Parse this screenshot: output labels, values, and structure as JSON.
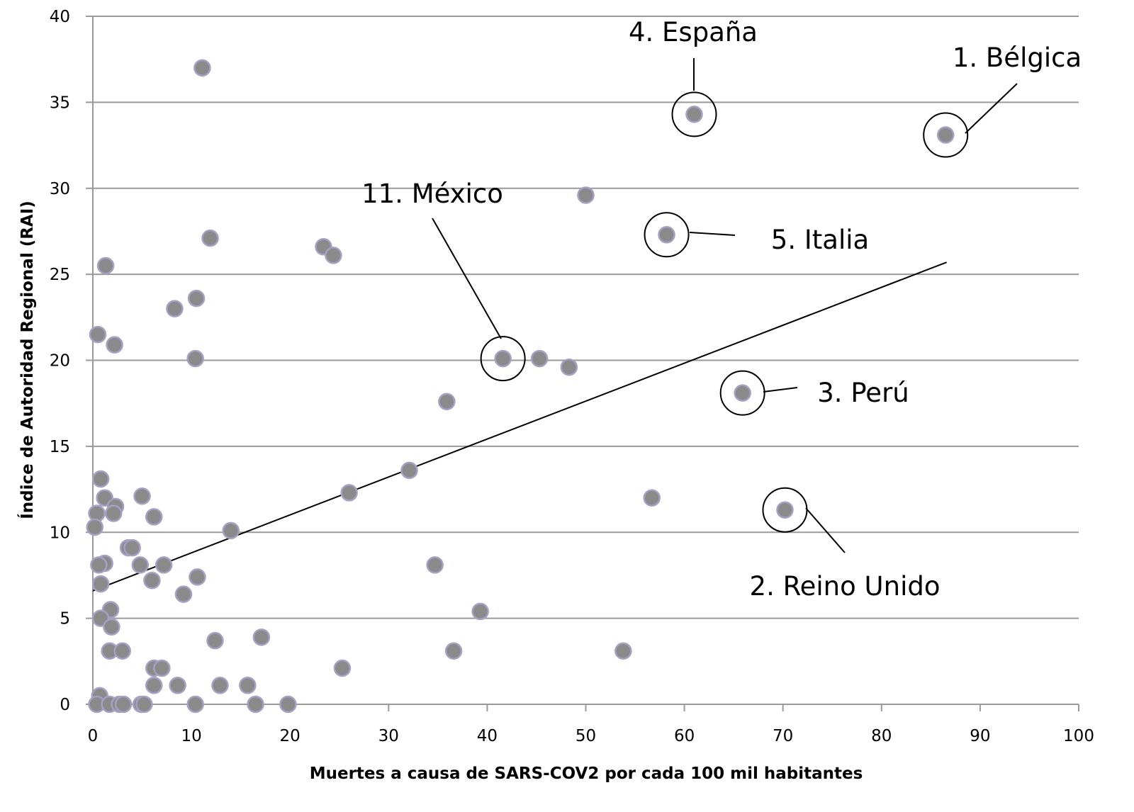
{
  "chart_data": {
    "type": "scatter",
    "title": "",
    "xlabel": "Muertes a causa de SARS-COV2 por cada 100 mil habitantes",
    "ylabel": "Índice de Autoridad Regional (RAI)",
    "xlim": [
      0,
      100
    ],
    "ylim": [
      0,
      40
    ],
    "xticks": [
      0,
      10,
      20,
      30,
      40,
      50,
      60,
      70,
      80,
      90,
      100
    ],
    "yticks": [
      0,
      5,
      10,
      15,
      20,
      25,
      30,
      35,
      40
    ],
    "grid": "horizontal",
    "colors": {
      "point_fill": "#8a8a8a",
      "point_stroke": "#a79fc4",
      "grid": "#9a9a9a",
      "trend": "#000000"
    },
    "points": [
      [
        11.1,
        37.0
      ],
      [
        61.0,
        34.3
      ],
      [
        86.5,
        33.1
      ],
      [
        50.0,
        29.6
      ],
      [
        58.2,
        27.3
      ],
      [
        11.9,
        27.1
      ],
      [
        23.4,
        26.6
      ],
      [
        24.4,
        26.1
      ],
      [
        1.3,
        25.5
      ],
      [
        10.5,
        23.6
      ],
      [
        8.3,
        23.0
      ],
      [
        0.5,
        21.5
      ],
      [
        2.2,
        20.9
      ],
      [
        41.6,
        20.1
      ],
      [
        45.3,
        20.1
      ],
      [
        10.4,
        20.1
      ],
      [
        48.3,
        19.6
      ],
      [
        65.9,
        18.1
      ],
      [
        35.9,
        17.6
      ],
      [
        32.1,
        13.6
      ],
      [
        0.8,
        13.1
      ],
      [
        26.0,
        12.3
      ],
      [
        56.7,
        12.0
      ],
      [
        5.0,
        12.1
      ],
      [
        1.2,
        12.0
      ],
      [
        2.3,
        11.5
      ],
      [
        2.1,
        11.1
      ],
      [
        0.4,
        11.1
      ],
      [
        6.2,
        10.9
      ],
      [
        70.2,
        11.3
      ],
      [
        0.2,
        10.3
      ],
      [
        14.0,
        10.1
      ],
      [
        3.6,
        9.1
      ],
      [
        4.0,
        9.1
      ],
      [
        1.2,
        8.2
      ],
      [
        0.6,
        8.1
      ],
      [
        4.8,
        8.1
      ],
      [
        7.2,
        8.1
      ],
      [
        34.7,
        8.1
      ],
      [
        10.6,
        7.4
      ],
      [
        6.0,
        7.2
      ],
      [
        0.8,
        7.0
      ],
      [
        9.2,
        6.4
      ],
      [
        39.3,
        5.4
      ],
      [
        1.8,
        5.5
      ],
      [
        0.8,
        5.0
      ],
      [
        1.9,
        4.5
      ],
      [
        17.1,
        3.9
      ],
      [
        12.4,
        3.7
      ],
      [
        1.7,
        3.1
      ],
      [
        3.0,
        3.1
      ],
      [
        36.6,
        3.1
      ],
      [
        53.8,
        3.1
      ],
      [
        25.3,
        2.1
      ],
      [
        6.2,
        2.1
      ],
      [
        7.0,
        2.1
      ],
      [
        6.2,
        1.1
      ],
      [
        8.6,
        1.1
      ],
      [
        12.9,
        1.1
      ],
      [
        15.7,
        1.1
      ],
      [
        0.7,
        0.5
      ],
      [
        0.4,
        0
      ],
      [
        1.7,
        0
      ],
      [
        2.7,
        0
      ],
      [
        3.1,
        0
      ],
      [
        4.9,
        0
      ],
      [
        5.2,
        0
      ],
      [
        10.4,
        0
      ],
      [
        16.5,
        0
      ],
      [
        19.8,
        0
      ]
    ],
    "trendline": {
      "x": [
        0,
        86.6
      ],
      "y": [
        6.6,
        25.7
      ]
    },
    "annotations": [
      {
        "label": "1. Bélgica",
        "x": 86.5,
        "y": 33.1
      },
      {
        "label": "2. Reino Unido",
        "x": 70.2,
        "y": 11.3
      },
      {
        "label": "3. Perú",
        "x": 65.9,
        "y": 18.1
      },
      {
        "label": "4. España",
        "x": 61.0,
        "y": 34.3
      },
      {
        "label": "5. Italia",
        "x": 58.2,
        "y": 27.3
      },
      {
        "label": "11. México",
        "x": 41.6,
        "y": 20.1
      }
    ]
  }
}
